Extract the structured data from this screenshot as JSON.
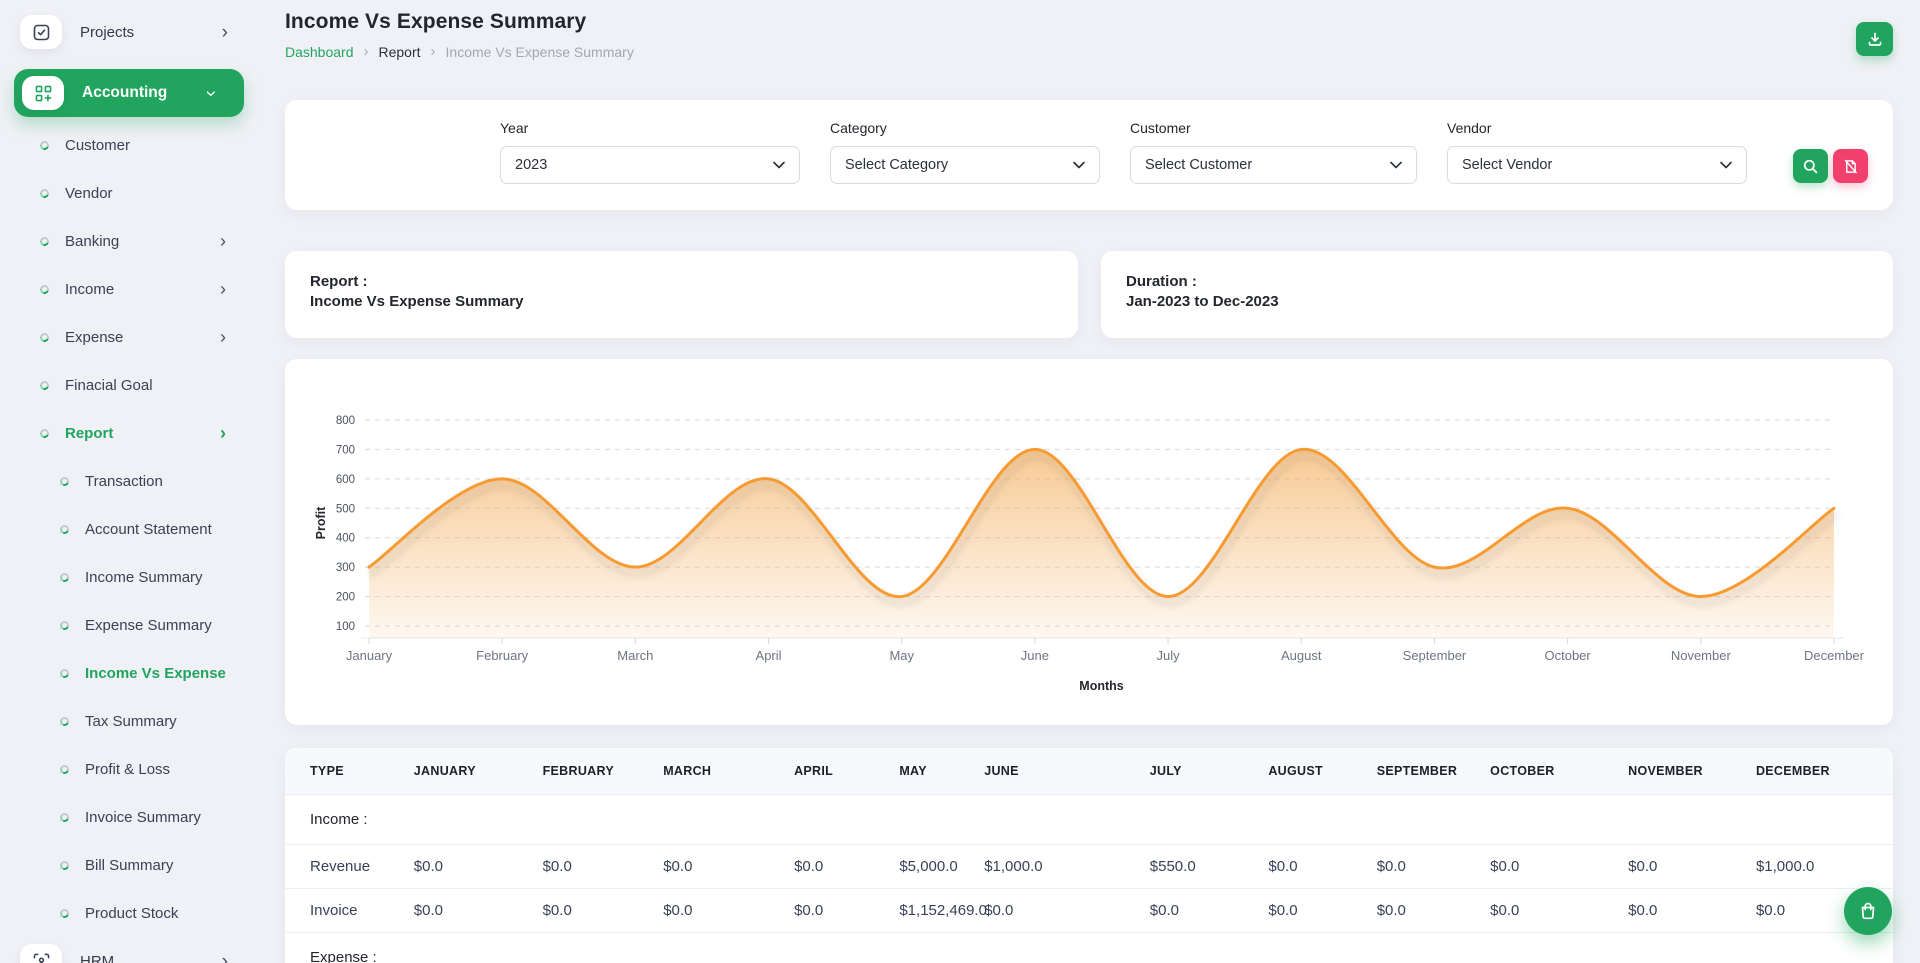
{
  "theme": {
    "accent_green": "#21a55e",
    "accent_pink": "#f2406e",
    "chart_line_orange": "#f79a32"
  },
  "sidebar": {
    "items": [
      {
        "label": "Projects"
      },
      {
        "label": "Accounting"
      },
      {
        "label": "Customer"
      },
      {
        "label": "Vendor"
      },
      {
        "label": "Banking"
      },
      {
        "label": "Income"
      },
      {
        "label": "Expense"
      },
      {
        "label": "Finacial Goal"
      },
      {
        "label": "Report"
      },
      {
        "label": "Transaction"
      },
      {
        "label": "Account Statement"
      },
      {
        "label": "Income Summary"
      },
      {
        "label": "Expense Summary"
      },
      {
        "label": "Income Vs Expense"
      },
      {
        "label": "Tax Summary"
      },
      {
        "label": "Profit & Loss"
      },
      {
        "label": "Invoice Summary"
      },
      {
        "label": "Bill Summary"
      },
      {
        "label": "Product Stock"
      },
      {
        "label": "HRM"
      }
    ]
  },
  "header": {
    "title": "Income Vs Expense Summary",
    "breadcrumb": {
      "home": "Dashboard",
      "section": "Report",
      "current": "Income Vs Expense Summary"
    }
  },
  "filters": {
    "year": {
      "label": "Year",
      "value": "2023"
    },
    "category": {
      "label": "Category",
      "value": "Select Category"
    },
    "customer": {
      "label": "Customer",
      "value": "Select Customer"
    },
    "vendor": {
      "label": "Vendor",
      "value": "Select Vendor"
    }
  },
  "summary_cards": {
    "report": {
      "title": "Report :",
      "value": "Income Vs Expense Summary"
    },
    "duration": {
      "title": "Duration :",
      "value": "Jan-2023 to Dec-2023"
    }
  },
  "chart_data": {
    "type": "area",
    "x": [
      "January",
      "February",
      "March",
      "April",
      "May",
      "June",
      "July",
      "August",
      "September",
      "October",
      "November",
      "December"
    ],
    "series": [
      {
        "name": "Profit",
        "values": [
          300,
          600,
          300,
          600,
          200,
          700,
          200,
          700,
          300,
          500,
          200,
          500
        ]
      }
    ],
    "title": "",
    "xlabel": "Months",
    "ylabel": "Profit",
    "ylim": [
      100,
      800
    ],
    "ytick_step": 100,
    "grid": true,
    "legend": "none",
    "line_color": "#f79a32",
    "fill_color": "#f2a953"
  },
  "table": {
    "headers": [
      "TYPE",
      "JANUARY",
      "FEBRUARY",
      "MARCH",
      "APRIL",
      "MAY",
      "JUNE",
      "JULY",
      "AUGUST",
      "SEPTEMBER",
      "OCTOBER",
      "NOVEMBER",
      "DECEMBER"
    ],
    "sections": [
      {
        "label": "Income :",
        "rows": [
          {
            "type": "Revenue",
            "values": [
              "$0.0",
              "$0.0",
              "$0.0",
              "$0.0",
              "$5,000.0",
              "$1,000.0",
              "$550.0",
              "$0.0",
              "$0.0",
              "$0.0",
              "$0.0",
              "$1,000.0"
            ]
          },
          {
            "type": "Invoice",
            "values": [
              "$0.0",
              "$0.0",
              "$0.0",
              "$0.0",
              "$1,152,469.0",
              "$0.0",
              "$0.0",
              "$0.0",
              "$0.0",
              "$0.0",
              "$0.0",
              "$0.0"
            ]
          }
        ]
      },
      {
        "label": "Expense :",
        "rows": []
      }
    ]
  },
  "icons": {
    "top_right_button": "download-icon",
    "filter_buttons": [
      "search-icon",
      "clear-filter-icon"
    ],
    "fab": "shopping-bag-icon"
  }
}
